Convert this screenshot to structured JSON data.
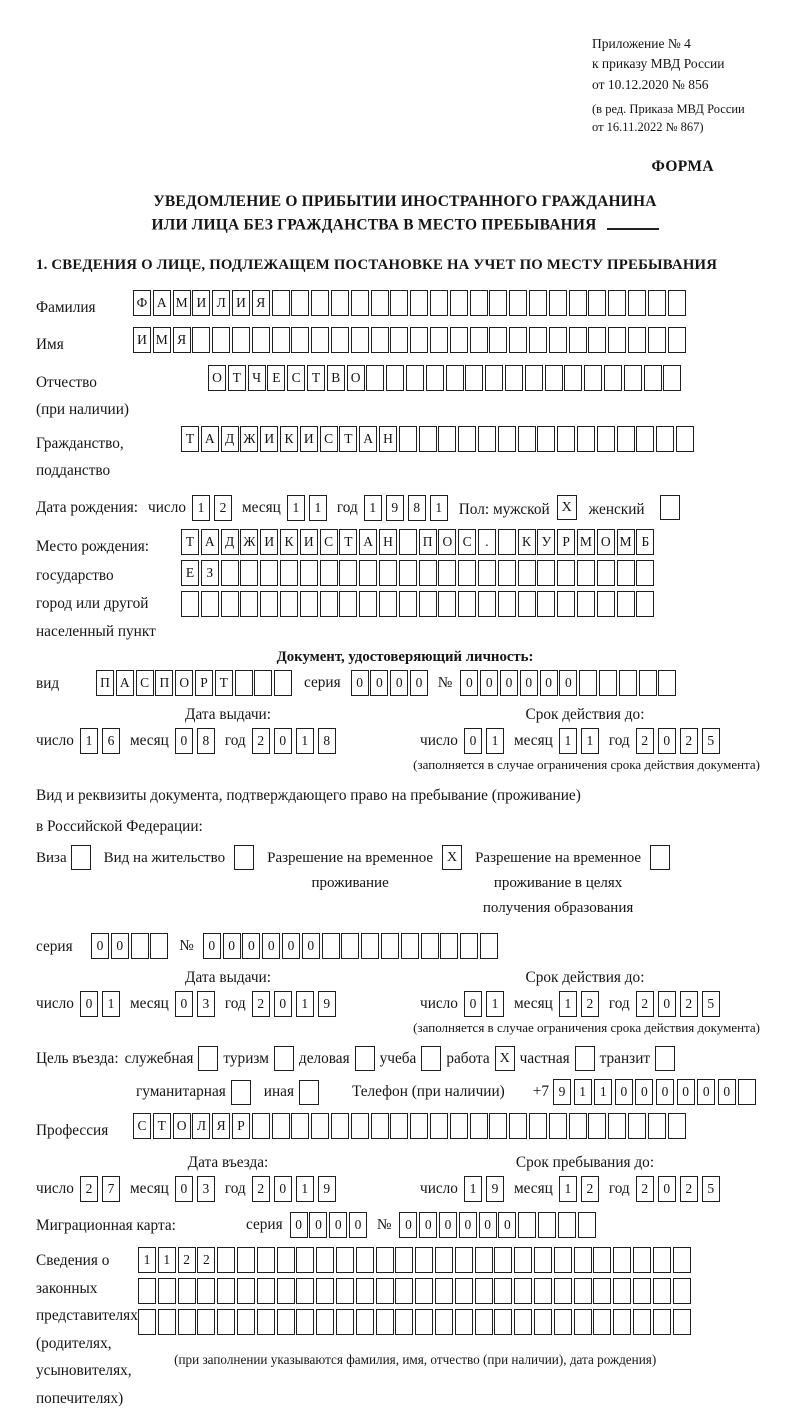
{
  "header": {
    "appendix_lines": [
      "Приложение № 4",
      "к приказу МВД России",
      "от 10.12.2020 № 856"
    ],
    "edition_lines": [
      "(в ред. Приказа МВД России",
      "от 16.11.2022 № 867)"
    ],
    "forma": "ФОРМА"
  },
  "title": {
    "line1": "УВЕДОМЛЕНИЕ О ПРИБЫТИИ ИНОСТРАННОГО ГРАЖДАНИНА",
    "line2": "ИЛИ ЛИЦА БЕЗ ГРАЖДАНСТВА В МЕСТО ПРЕБЫВАНИЯ"
  },
  "section1_heading": "1. СВЕДЕНИЯ О ЛИЦЕ, ПОДЛЕЖАЩЕМ ПОСТАНОВКЕ НА УЧЕТ ПО МЕСТУ ПРЕБЫВАНИЯ",
  "labels": {
    "day": "число",
    "month": "месяц",
    "year": "год",
    "series": "серия",
    "number": "№"
  },
  "surname": {
    "label": "Фамилия",
    "cells": [
      "Ф",
      "А",
      "М",
      "И",
      "Л",
      "И",
      "Я",
      "",
      "",
      "",
      "",
      "",
      "",
      "",
      "",
      "",
      "",
      "",
      "",
      "",
      "",
      "",
      "",
      "",
      "",
      "",
      "",
      ""
    ]
  },
  "given_name": {
    "label": "Имя",
    "cells": [
      "И",
      "М",
      "Я",
      "",
      "",
      "",
      "",
      "",
      "",
      "",
      "",
      "",
      "",
      "",
      "",
      "",
      "",
      "",
      "",
      "",
      "",
      "",
      "",
      "",
      "",
      "",
      "",
      ""
    ]
  },
  "patronymic": {
    "label": "Отчество\n(при наличии)",
    "cells": [
      "О",
      "Т",
      "Ч",
      "Е",
      "С",
      "Т",
      "В",
      "О",
      "",
      "",
      "",
      "",
      "",
      "",
      "",
      "",
      "",
      "",
      "",
      "",
      "",
      "",
      "",
      ""
    ]
  },
  "citizenship": {
    "label": "Гражданство,\nподданство",
    "cells": [
      "Т",
      "А",
      "Д",
      "Ж",
      "И",
      "К",
      "И",
      "С",
      "Т",
      "А",
      "Н",
      "",
      "",
      "",
      "",
      "",
      "",
      "",
      "",
      "",
      "",
      "",
      "",
      "",
      "",
      ""
    ]
  },
  "birth": {
    "label": "Дата рождения:",
    "day": [
      "1",
      "2"
    ],
    "month": [
      "1",
      "1"
    ],
    "year": [
      "1",
      "9",
      "8",
      "1"
    ],
    "gender_label": "Пол: мужской",
    "male": "X",
    "female_label": "женский",
    "female": ""
  },
  "birthplace": {
    "label": "Место рождения:\nгосударство\nгород или другой\nнаселенный пункт",
    "row1": [
      "Т",
      "А",
      "Д",
      "Ж",
      "И",
      "К",
      "И",
      "С",
      "Т",
      "А",
      "Н",
      "",
      "П",
      "О",
      "С",
      ".",
      "",
      "К",
      "У",
      "Р",
      "М",
      "О",
      "М",
      "Б"
    ],
    "row2": [
      "Е",
      "З",
      "",
      "",
      "",
      "",
      "",
      "",
      "",
      "",
      "",
      "",
      "",
      "",
      "",
      "",
      "",
      "",
      "",
      "",
      "",
      "",
      "",
      ""
    ],
    "row3": [
      "",
      "",
      "",
      "",
      "",
      "",
      "",
      "",
      "",
      "",
      "",
      "",
      "",
      "",
      "",
      "",
      "",
      "",
      "",
      "",
      "",
      "",
      "",
      ""
    ]
  },
  "identity_doc": {
    "heading": "Документ, удостоверяющий личность:",
    "kind_label": "вид",
    "kind": [
      "П",
      "А",
      "С",
      "П",
      "О",
      "Р",
      "Т",
      "",
      "",
      ""
    ],
    "series": [
      "0",
      "0",
      "0",
      "0"
    ],
    "number": [
      "0",
      "0",
      "0",
      "0",
      "0",
      "0",
      "",
      "",
      "",
      "",
      ""
    ],
    "issue_label": "Дата выдачи:",
    "issue_day": [
      "1",
      "6"
    ],
    "issue_month": [
      "0",
      "8"
    ],
    "issue_year": [
      "2",
      "0",
      "1",
      "8"
    ],
    "valid_label": "Срок действия до:",
    "valid_day": [
      "0",
      "1"
    ],
    "valid_month": [
      "1",
      "1"
    ],
    "valid_year": [
      "2",
      "0",
      "2",
      "5"
    ],
    "note": "(заполняется в случае ограничения срока действия документа)"
  },
  "residence_doc": {
    "intro1": "Вид и реквизиты документа, подтверждающего право на пребывание (проживание)",
    "intro2": "в Российской Федерации:",
    "options": [
      {
        "label": "Виза",
        "checked": ""
      },
      {
        "label": "Вид на жительство",
        "checked": ""
      },
      {
        "label": "Разрешение на временное\nпроживание",
        "checked": "X"
      },
      {
        "label": "Разрешение на временное\nпроживание в целях\nполучения образования",
        "checked": ""
      }
    ],
    "series": [
      "0",
      "0",
      "",
      ""
    ],
    "number": [
      "0",
      "0",
      "0",
      "0",
      "0",
      "0",
      "",
      "",
      "",
      "",
      "",
      "",
      "",
      "",
      ""
    ],
    "issue_label": "Дата выдачи:",
    "issue_day": [
      "0",
      "1"
    ],
    "issue_month": [
      "0",
      "3"
    ],
    "issue_year": [
      "2",
      "0",
      "1",
      "9"
    ],
    "valid_label": "Срок действия до:",
    "valid_day": [
      "0",
      "1"
    ],
    "valid_month": [
      "1",
      "2"
    ],
    "valid_year": [
      "2",
      "0",
      "2",
      "5"
    ],
    "note": "(заполняется в случае ограничения срока действия документа)"
  },
  "purpose": {
    "intro": "Цель въезда:",
    "options": [
      {
        "label": "служебная",
        "checked": ""
      },
      {
        "label": "туризм",
        "checked": ""
      },
      {
        "label": "деловая",
        "checked": ""
      },
      {
        "label": "учеба",
        "checked": ""
      },
      {
        "label": "работа",
        "checked": "X"
      },
      {
        "label": "частная",
        "checked": ""
      },
      {
        "label": "транзит",
        "checked": ""
      },
      {
        "label": "гуманитарная",
        "checked": ""
      },
      {
        "label": "иная",
        "checked": ""
      }
    ],
    "phone_label": "Телефон (при наличии)",
    "phone_prefix": "+7",
    "phone_digits": [
      "9",
      "1",
      "1",
      "0",
      "0",
      "0",
      "0",
      "0",
      "0",
      ""
    ]
  },
  "profession": {
    "label": "Профессия",
    "cells": [
      "С",
      "Т",
      "О",
      "Л",
      "Я",
      "Р",
      "",
      "",
      "",
      "",
      "",
      "",
      "",
      "",
      "",
      "",
      "",
      "",
      "",
      "",
      "",
      "",
      "",
      "",
      "",
      "",
      "",
      ""
    ]
  },
  "entry": {
    "head_left": "Дата въезда:",
    "head_right": "Срок пребывания до:",
    "entry_day": [
      "2",
      "7"
    ],
    "entry_month": [
      "0",
      "3"
    ],
    "entry_year": [
      "2",
      "0",
      "1",
      "9"
    ],
    "stay_day": [
      "1",
      "9"
    ],
    "stay_month": [
      "1",
      "2"
    ],
    "stay_year": [
      "2",
      "0",
      "2",
      "5"
    ]
  },
  "migration_card": {
    "label": "Миграционная карта:",
    "series": [
      "0",
      "0",
      "0",
      "0"
    ],
    "number": [
      "0",
      "0",
      "0",
      "0",
      "0",
      "0",
      "",
      "",
      "",
      ""
    ]
  },
  "representatives": {
    "label": "Сведения о\nзаконных\nпредставителях\n(родителях,\nусыновителях,\nпопечителях)",
    "row1": [
      "1",
      "1",
      "2",
      "2",
      "",
      "",
      "",
      "",
      "",
      "",
      "",
      "",
      "",
      "",
      "",
      "",
      "",
      "",
      "",
      "",
      "",
      "",
      "",
      "",
      "",
      "",
      "",
      ""
    ],
    "row2": [
      "",
      "",
      "",
      "",
      "",
      "",
      "",
      "",
      "",
      "",
      "",
      "",
      "",
      "",
      "",
      "",
      "",
      "",
      "",
      "",
      "",
      "",
      "",
      "",
      "",
      "",
      "",
      ""
    ],
    "row3": [
      "",
      "",
      "",
      "",
      "",
      "",
      "",
      "",
      "",
      "",
      "",
      "",
      "",
      "",
      "",
      "",
      "",
      "",
      "",
      "",
      "",
      "",
      "",
      "",
      "",
      "",
      "",
      ""
    ],
    "note": "(при заполнении указываются фамилия, имя, отчество (при наличии), дата рождения)"
  }
}
